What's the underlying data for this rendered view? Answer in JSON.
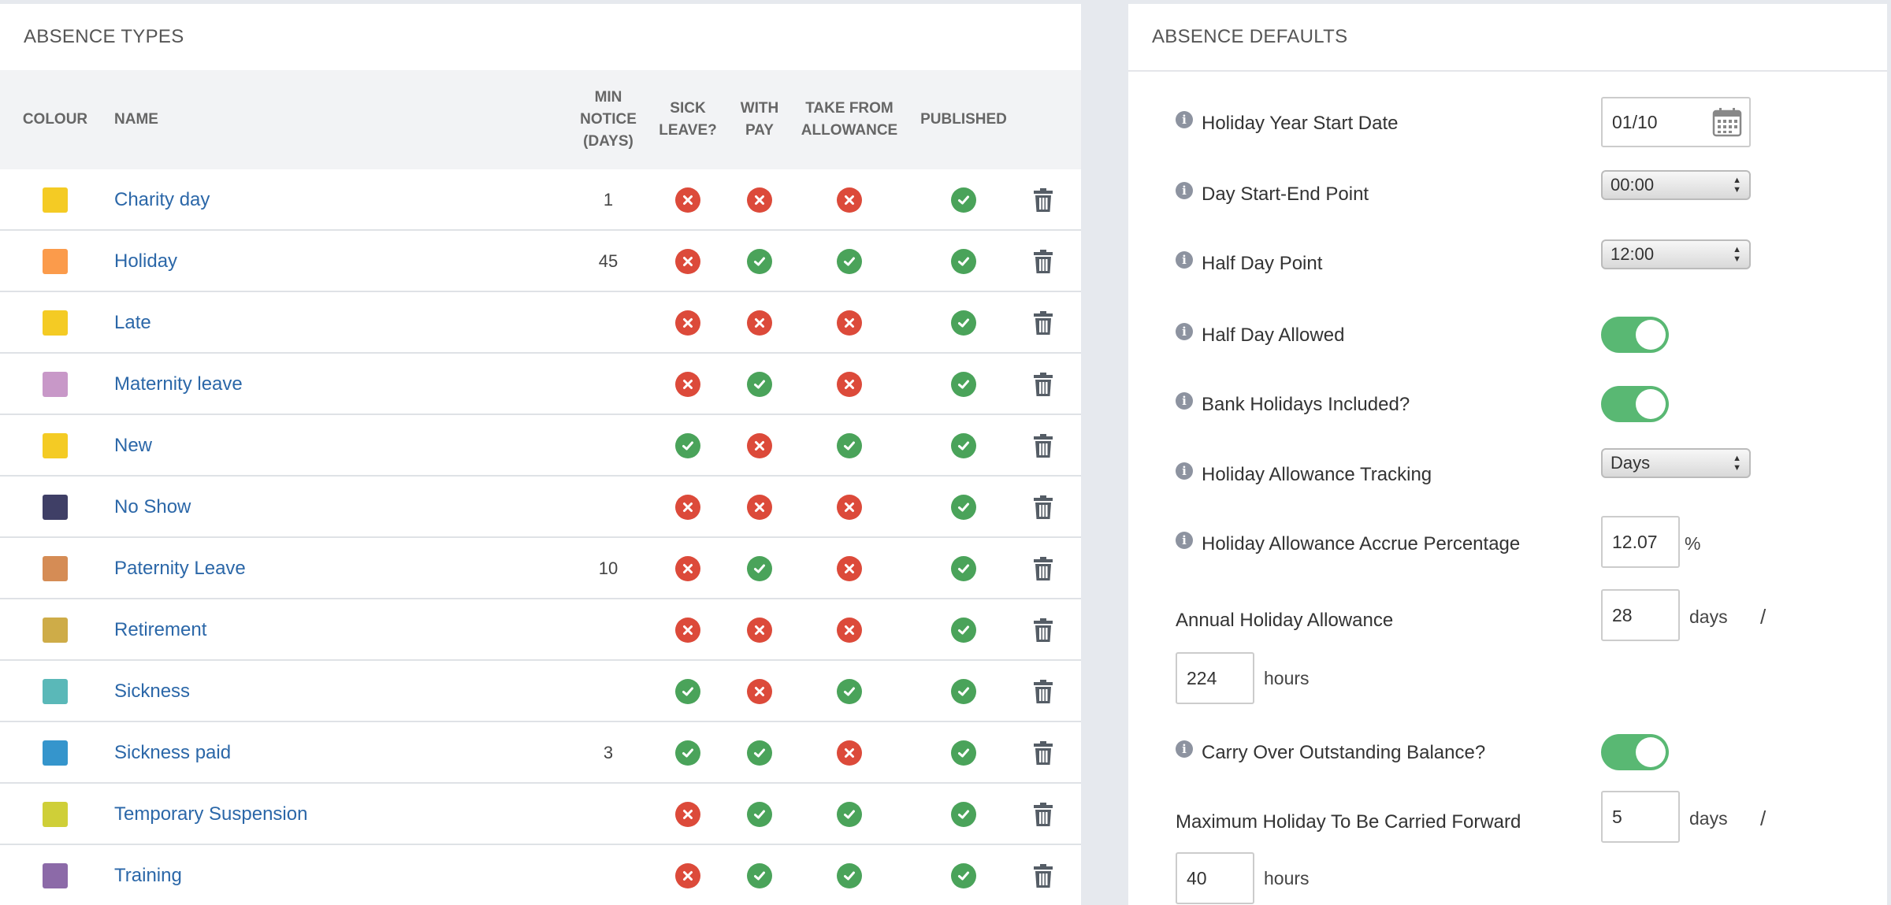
{
  "absence_types": {
    "title": "ABSENCE TYPES",
    "headers": {
      "colour": "COLOUR",
      "name": "NAME",
      "min_notice": [
        "MIN",
        "NOTICE",
        "(DAYS)"
      ],
      "sick_leave": [
        "SICK",
        "LEAVE?"
      ],
      "with_pay": [
        "WITH",
        "PAY"
      ],
      "take_from_allowance": [
        "TAKE FROM",
        "ALLOWANCE"
      ],
      "published": "PUBLISHED"
    },
    "rows": [
      {
        "colour": "#f4cb24",
        "name": "Charity day",
        "min_notice": "1",
        "sick_leave": false,
        "with_pay": false,
        "take_from_allowance": false,
        "published": true
      },
      {
        "colour": "#fb9b4b",
        "name": "Holiday",
        "min_notice": "45",
        "sick_leave": false,
        "with_pay": true,
        "take_from_allowance": true,
        "published": true
      },
      {
        "colour": "#f4cb24",
        "name": "Late",
        "min_notice": "",
        "sick_leave": false,
        "with_pay": false,
        "take_from_allowance": false,
        "published": true
      },
      {
        "colour": "#c898c8",
        "name": "Maternity leave",
        "min_notice": "",
        "sick_leave": false,
        "with_pay": true,
        "take_from_allowance": false,
        "published": true
      },
      {
        "colour": "#f4cb24",
        "name": "New",
        "min_notice": "",
        "sick_leave": true,
        "with_pay": false,
        "take_from_allowance": true,
        "published": true
      },
      {
        "colour": "#3f3f66",
        "name": "No Show",
        "min_notice": "",
        "sick_leave": false,
        "with_pay": false,
        "take_from_allowance": false,
        "published": true
      },
      {
        "colour": "#d58c55",
        "name": "Paternity Leave",
        "min_notice": "10",
        "sick_leave": false,
        "with_pay": true,
        "take_from_allowance": false,
        "published": true
      },
      {
        "colour": "#ceac48",
        "name": "Retirement",
        "min_notice": "",
        "sick_leave": false,
        "with_pay": false,
        "take_from_allowance": false,
        "published": true
      },
      {
        "colour": "#5ab8b8",
        "name": "Sickness",
        "min_notice": "",
        "sick_leave": true,
        "with_pay": false,
        "take_from_allowance": true,
        "published": true
      },
      {
        "colour": "#3595cc",
        "name": "Sickness paid",
        "min_notice": "3",
        "sick_leave": true,
        "with_pay": true,
        "take_from_allowance": false,
        "published": true
      },
      {
        "colour": "#cfcf38",
        "name": "Temporary Suspension",
        "min_notice": "",
        "sick_leave": false,
        "with_pay": true,
        "take_from_allowance": true,
        "published": true
      },
      {
        "colour": "#8c6aa8",
        "name": "Training",
        "min_notice": "",
        "sick_leave": false,
        "with_pay": true,
        "take_from_allowance": true,
        "published": true
      }
    ],
    "icons": {
      "yes": "check-circle-icon",
      "no": "cross-circle-icon",
      "delete": "trash-icon"
    },
    "colors": {
      "yes": "#4aa35a",
      "no": "#dc4a3a",
      "link": "#2b67a8"
    }
  },
  "absence_defaults": {
    "title": "ABSENCE DEFAULTS",
    "holiday_year_start": {
      "label": "Holiday Year Start Date",
      "value": "01/10"
    },
    "day_start_end": {
      "label": "Day Start-End Point",
      "value": "00:00"
    },
    "half_day_point": {
      "label": "Half Day Point",
      "value": "12:00"
    },
    "half_day_allowed": {
      "label": "Half Day Allowed",
      "on": true
    },
    "bank_holidays": {
      "label": "Bank Holidays Included?",
      "on": true
    },
    "allowance_tracking": {
      "label": "Holiday Allowance Tracking",
      "value": "Days"
    },
    "accrue_percentage": {
      "label": "Holiday Allowance Accrue Percentage",
      "value": "12.07",
      "unit": "%"
    },
    "annual_allowance": {
      "label": "Annual Holiday Allowance",
      "days": "28",
      "days_unit": "days",
      "separator": "/",
      "hours": "224",
      "hours_unit": "hours"
    },
    "carry_over": {
      "label": "Carry Over Outstanding Balance?",
      "on": true
    },
    "max_carried": {
      "label": "Maximum Holiday To Be Carried Forward",
      "days": "5",
      "days_unit": "days",
      "separator": "/",
      "hours": "40",
      "hours_unit": "hours"
    },
    "info_icon": "info-icon",
    "calendar_icon": "calendar-icon",
    "toggle_color": "#59b873"
  }
}
